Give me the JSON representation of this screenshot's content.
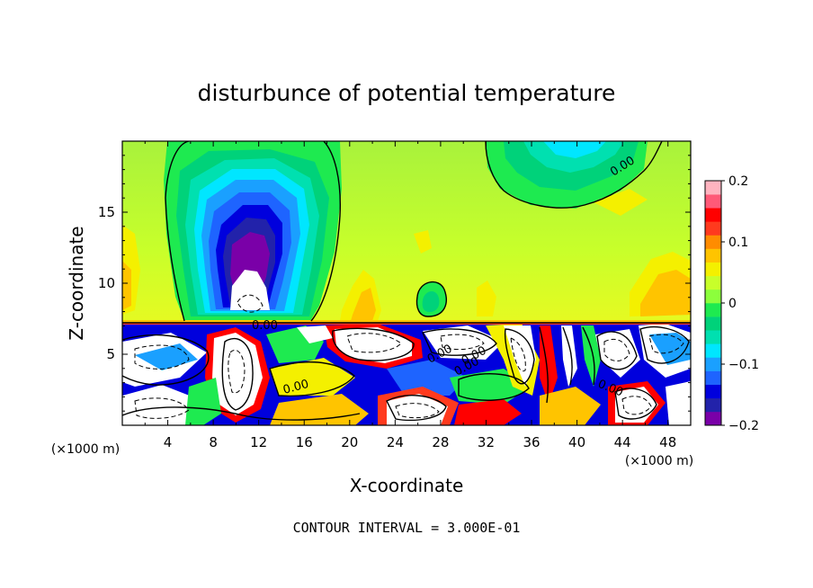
{
  "chart_data": {
    "type": "heatmap",
    "title": "disturbunce of potential temperature",
    "xlabel": "X-coordinate",
    "ylabel": "Z-coordinate",
    "x_unit": "(×1000 m)",
    "y_unit": "(×1000 m)",
    "xlim": [
      0,
      50
    ],
    "ylim": [
      0,
      20
    ],
    "x_ticks": [
      4,
      8,
      12,
      16,
      20,
      24,
      28,
      32,
      36,
      40,
      44,
      48
    ],
    "y_ticks": [
      5,
      10,
      15
    ],
    "colorbar": {
      "range": [
        -0.2,
        0.2
      ],
      "tick_values": [
        0.2,
        0.1,
        0,
        -0.1,
        -0.2
      ],
      "tick_labels": [
        "0.2",
        "0.1",
        "0",
        "−0.1",
        "−0.2"
      ],
      "colors": [
        "#7a00a8",
        "#2222aa",
        "#0000dd",
        "#1e64ff",
        "#1aa0ff",
        "#00e6ff",
        "#00e0b0",
        "#00d27a",
        "#1eea50",
        "#8cff3c",
        "#c8ff2a",
        "#f4f000",
        "#ffc400",
        "#ff8c00",
        "#ff3a1e",
        "#ff0000",
        "#ff5a78",
        "#ffb4c0"
      ]
    },
    "contour_labels": [
      "0.00",
      "0.00",
      "0.00",
      "0.00",
      "0.00",
      "0.00",
      "0.00"
    ],
    "annotation": "CONTOUR INTERVAL = 3.000E-01"
  }
}
